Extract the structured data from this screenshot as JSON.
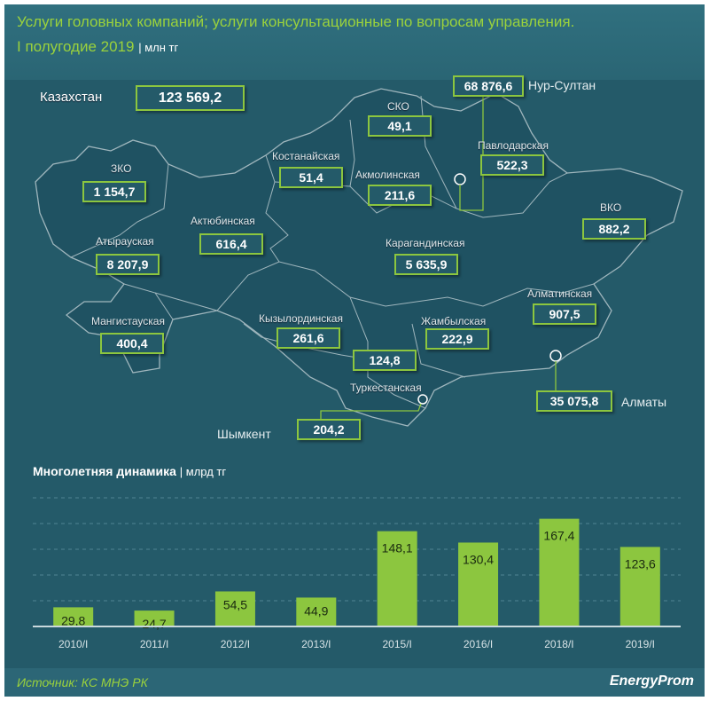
{
  "header": {
    "title_line1": "Услуги головных компаний;  услуги консультационные по вопросам управления.",
    "title_line2": "I полугодие 2019",
    "unit": "| млн тг"
  },
  "map": {
    "total": {
      "label": "Казахстан",
      "value": "123 569,2"
    },
    "regions": [
      {
        "name": "ЗКО",
        "value": "1 154,7"
      },
      {
        "name": "Атырауская",
        "value": "8 207,9"
      },
      {
        "name": "Мангистауская",
        "value": "400,4"
      },
      {
        "name": "Актюбинская",
        "value": "616,4"
      },
      {
        "name": "Костанайская",
        "value": "51,4"
      },
      {
        "name": "СКО",
        "value": "49,1"
      },
      {
        "name": "Акмолинская",
        "value": "211,6"
      },
      {
        "name": "Павлодарская",
        "value": "522,3"
      },
      {
        "name": "ВКО",
        "value": "882,2"
      },
      {
        "name": "Карагандинская",
        "value": "5 635,9"
      },
      {
        "name": "Кызылординская",
        "value": "261,6"
      },
      {
        "name": "Жамбылская",
        "value": "222,9"
      },
      {
        "name": "Алматинская",
        "value": "907,5"
      },
      {
        "name": "Туркестанская",
        "value": "124,8"
      }
    ],
    "cities": [
      {
        "name": "Нур-Султан",
        "value": "68 876,6"
      },
      {
        "name": "Алматы",
        "value": "35 075,8"
      },
      {
        "name": "Шымкент",
        "value": "204,2"
      }
    ]
  },
  "chart_data": {
    "type": "bar",
    "title": "Многолетняя  динамика",
    "unit": "| млрд тг",
    "categories": [
      "2010/I",
      "2011/I",
      "2012/I",
      "2013/I",
      "2015/I",
      "2016/I",
      "2018/I",
      "2019/I"
    ],
    "values": [
      29.8,
      24.7,
      54.5,
      44.9,
      148.1,
      130.4,
      167.4,
      123.6
    ],
    "labels": [
      "29,8",
      "24,7",
      "54,5",
      "44,9",
      "148,1",
      "130,4",
      "167,4",
      "123,6"
    ],
    "ylim": [
      0,
      200
    ],
    "gridlines": [
      40,
      80,
      120,
      160,
      200
    ],
    "bar_color": "#8cc63f"
  },
  "footer": {
    "source": "Источник: КС МНЭ РК",
    "logo": "EnergyProm"
  }
}
